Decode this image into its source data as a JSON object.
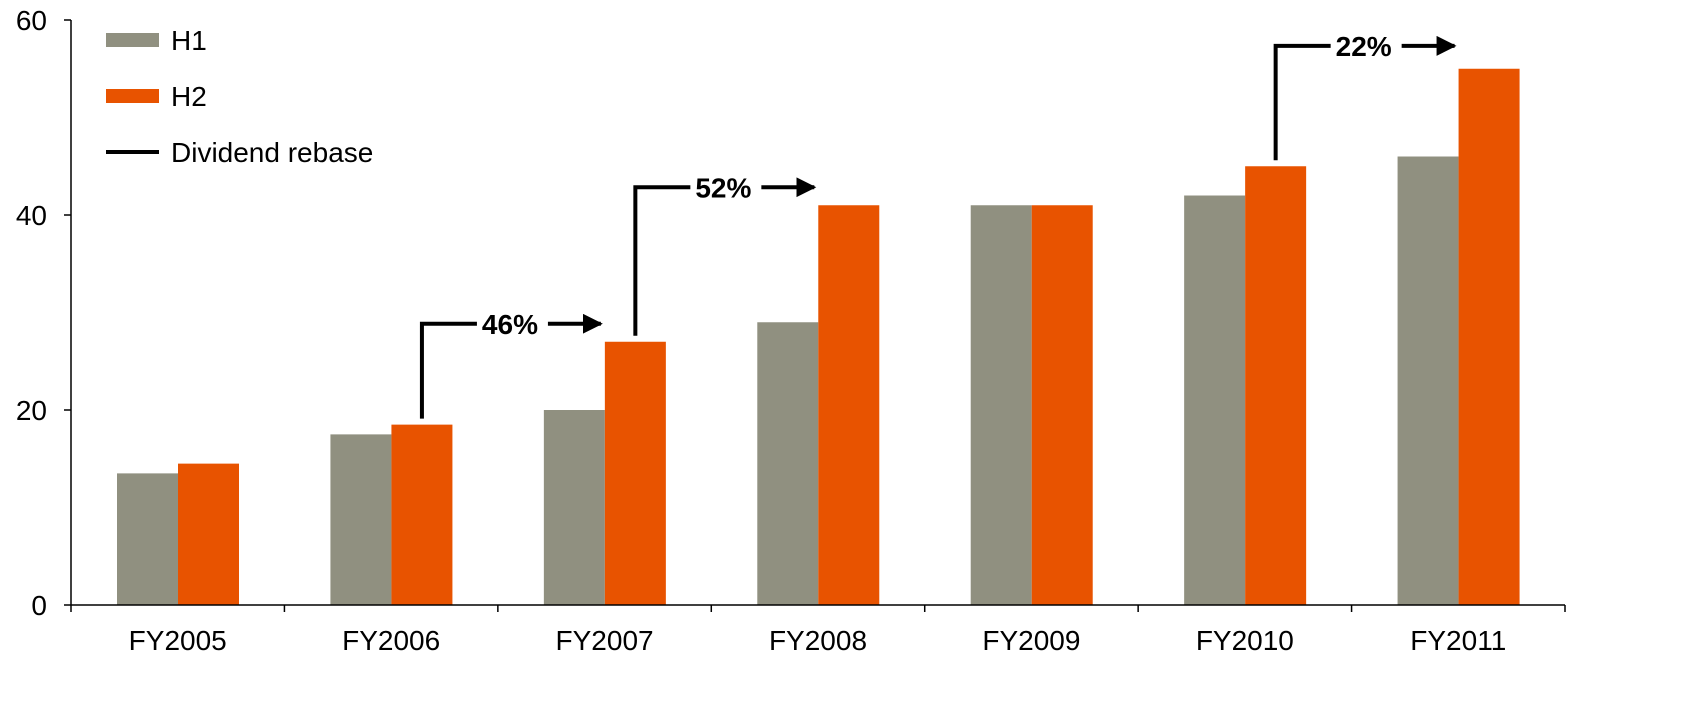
{
  "chart_data": {
    "type": "bar",
    "categories": [
      "FY2005",
      "FY2006",
      "FY2007",
      "FY2008",
      "FY2009",
      "FY2010",
      "FY2011"
    ],
    "series": [
      {
        "name": "H1",
        "color": "#909080",
        "values": [
          13.5,
          17.5,
          20,
          29,
          41,
          42,
          46
        ]
      },
      {
        "name": "H2",
        "color": "#e85300",
        "values": [
          14.5,
          18.5,
          27,
          41,
          41,
          45,
          55
        ]
      }
    ],
    "ylim": [
      0,
      60
    ],
    "yticks": [
      "0",
      "20",
      "40",
      "60"
    ],
    "legend": {
      "placement": "top-left",
      "line_entry": "Dividend rebase",
      "line_color": "#000000"
    },
    "annotations": [
      {
        "label": "46%",
        "from_category": "FY2006",
        "to_category": "FY2007",
        "level": 27
      },
      {
        "label": "52%",
        "from_category": "FY2007",
        "to_category": "FY2008",
        "level": 41
      },
      {
        "label": "22%",
        "from_category": "FY2010",
        "to_category": "FY2011",
        "level": 55.5
      }
    ],
    "grid": false
  }
}
